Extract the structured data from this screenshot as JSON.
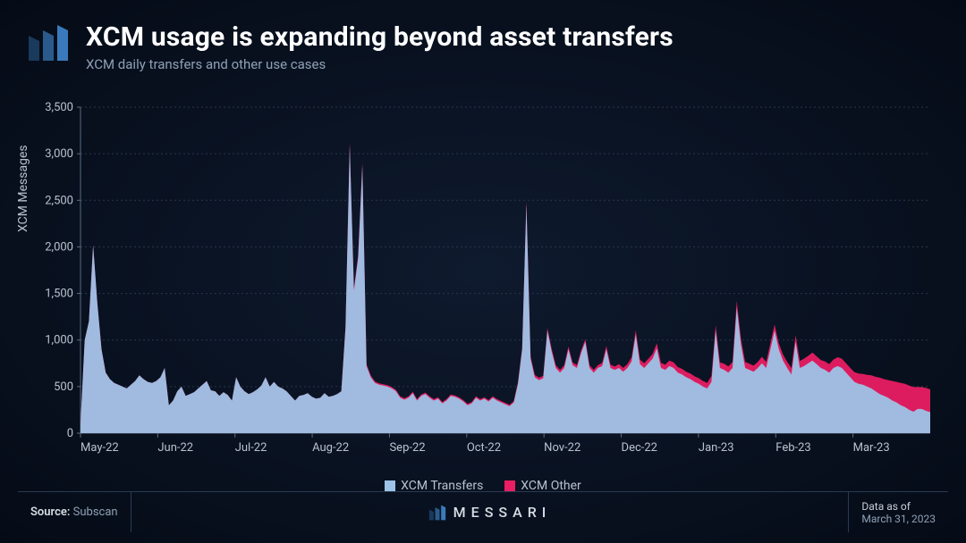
{
  "header": {
    "title": "XCM usage is expanding beyond asset transfers",
    "subtitle": "XCM daily transfers and other use cases"
  },
  "footer": {
    "source_label": "Source:",
    "source_value": "Subscan",
    "brand": "MESSARI",
    "date_label": "Data as of",
    "date_value": "March 31, 2023"
  },
  "chart": {
    "type": "area",
    "ylabel": "XCM Messages",
    "ylim": [
      0,
      3500
    ],
    "ytick_step": 500,
    "yticks": [
      "0",
      "500",
      "1,000",
      "1,500",
      "2,000",
      "2,500",
      "3,000",
      "3,500"
    ],
    "xticks": [
      "May-22",
      "Jun-22",
      "Jul-22",
      "Aug-22",
      "Sep-22",
      "Oct-22",
      "Nov-22",
      "Dec-22",
      "Jan-23",
      "Feb-23",
      "Mar-23"
    ],
    "background_color": "#0a1323",
    "grid_color": "#28364c",
    "axis_color": "#5a6b82",
    "tick_fontsize": 13,
    "tick_color": "#b8c2cf",
    "label_fontsize": 14,
    "series": [
      {
        "name": "XCM Transfers",
        "color": "#9dc3e6",
        "fill_opacity": 0.95,
        "values": [
          100,
          1000,
          1200,
          2020,
          1400,
          900,
          650,
          580,
          540,
          520,
          500,
          480,
          520,
          560,
          620,
          580,
          550,
          540,
          560,
          600,
          700,
          300,
          350,
          450,
          500,
          400,
          420,
          440,
          480,
          520,
          560,
          460,
          450,
          400,
          440,
          410,
          350,
          600,
          500,
          450,
          420,
          440,
          470,
          510,
          600,
          500,
          550,
          500,
          480,
          450,
          400,
          350,
          400,
          410,
          430,
          390,
          370,
          380,
          430,
          390,
          400,
          420,
          450,
          1130,
          3090,
          1530,
          1880,
          2870,
          720,
          600,
          540,
          520,
          510,
          500,
          480,
          450,
          380,
          360,
          380,
          430,
          350,
          400,
          420,
          380,
          350,
          370,
          320,
          350,
          400,
          390,
          370,
          340,
          300,
          320,
          380,
          350,
          370,
          340,
          380,
          350,
          330,
          310,
          290,
          330,
          530,
          900,
          2460,
          800,
          600,
          570,
          590,
          1100,
          880,
          700,
          650,
          700,
          900,
          730,
          700,
          860,
          980,
          700,
          650,
          700,
          720,
          900,
          700,
          680,
          700,
          660,
          700,
          770,
          1060,
          740,
          700,
          750,
          800,
          910,
          700,
          680,
          720,
          700,
          650,
          630,
          600,
          580,
          550,
          530,
          500,
          480,
          550,
          1100,
          700,
          680,
          650,
          700,
          1350,
          950,
          700,
          680,
          660,
          700,
          750,
          700,
          900,
          1100,
          900,
          780,
          700,
          630,
          980,
          700,
          720,
          750,
          780,
          740,
          700,
          680,
          650,
          700,
          720,
          700,
          650,
          600,
          550,
          530,
          520,
          500,
          480,
          450,
          420,
          400,
          380,
          350,
          330,
          300,
          280,
          250,
          230,
          260,
          260,
          240,
          225
        ]
      },
      {
        "name": "XCM Other",
        "color": "#e91e63",
        "fill_opacity": 0.95,
        "values": [
          100,
          1000,
          1200,
          2020,
          1400,
          900,
          650,
          580,
          540,
          520,
          500,
          480,
          520,
          560,
          620,
          580,
          550,
          540,
          560,
          600,
          700,
          300,
          350,
          450,
          500,
          400,
          420,
          440,
          480,
          520,
          560,
          460,
          450,
          400,
          440,
          410,
          350,
          600,
          500,
          450,
          420,
          440,
          470,
          510,
          600,
          500,
          550,
          500,
          480,
          450,
          400,
          350,
          400,
          410,
          430,
          390,
          370,
          380,
          430,
          390,
          400,
          420,
          450,
          1150,
          3120,
          1560,
          1910,
          2910,
          740,
          620,
          555,
          535,
          525,
          515,
          495,
          465,
          395,
          375,
          395,
          445,
          365,
          415,
          435,
          395,
          365,
          385,
          335,
          365,
          415,
          405,
          385,
          355,
          315,
          335,
          395,
          365,
          385,
          355,
          395,
          365,
          345,
          325,
          305,
          345,
          550,
          920,
          2490,
          825,
          625,
          595,
          615,
          1130,
          910,
          730,
          680,
          730,
          930,
          760,
          730,
          890,
          1010,
          730,
          680,
          730,
          755,
          935,
          735,
          715,
          740,
          700,
          740,
          815,
          1105,
          790,
          750,
          800,
          850,
          965,
          755,
          735,
          780,
          760,
          710,
          690,
          660,
          640,
          610,
          590,
          560,
          540,
          615,
          1160,
          760,
          745,
          715,
          765,
          1420,
          1015,
          765,
          745,
          725,
          765,
          820,
          765,
          965,
          1165,
          965,
          845,
          765,
          700,
          1050,
          775,
          800,
          830,
          865,
          825,
          785,
          770,
          740,
          790,
          815,
          800,
          750,
          700,
          655,
          640,
          635,
          625,
          620,
          605,
          595,
          580,
          570,
          560,
          550,
          540,
          530,
          510,
          495,
          495,
          495,
          485,
          470
        ]
      }
    ],
    "legend": [
      {
        "label": "XCM Transfers",
        "color": "#9dc3e6"
      },
      {
        "label": "XCM Other",
        "color": "#e91e63"
      }
    ]
  }
}
